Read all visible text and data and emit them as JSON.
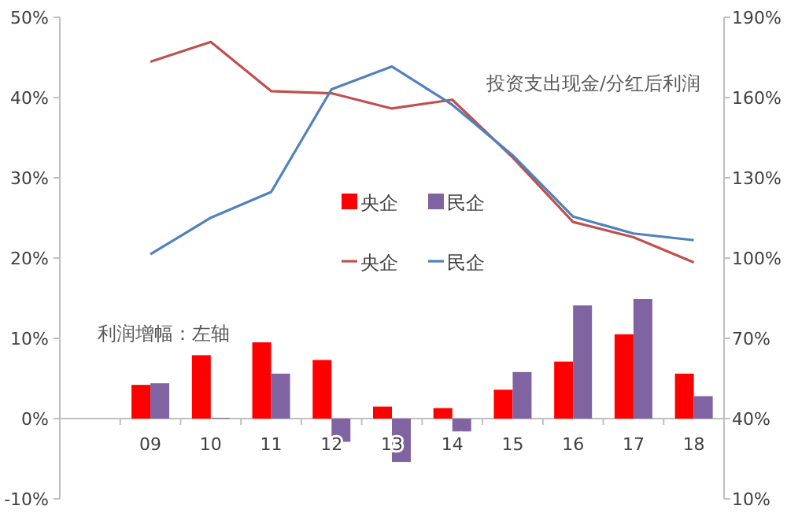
{
  "chart_data": {
    "type": "bar",
    "categories": [
      null,
      "09",
      "10",
      "11",
      "12",
      "13",
      "14",
      "15",
      "16",
      "17",
      "18"
    ],
    "series": [
      {
        "name": "央企",
        "color": "#ff0000",
        "values": [
          null,
          4.2,
          7.9,
          9.5,
          7.3,
          1.5,
          1.3,
          3.6,
          7.1,
          10.5,
          5.6
        ]
      },
      {
        "name": "民企",
        "color": "#8064a2",
        "values": [
          null,
          4.4,
          0.1,
          5.6,
          -2.9,
          -5.4,
          -1.6,
          5.8,
          14.1,
          14.9,
          2.8
        ]
      },
      {
        "name": "央企",
        "type": "line",
        "axis": "y2",
        "color": "#c0504d",
        "values": [
          null,
          173.4,
          180.8,
          162.4,
          161.6,
          155.9,
          159.2,
          137.6,
          113.5,
          107.8,
          98.4
        ]
      },
      {
        "name": "民企",
        "type": "line",
        "axis": "y2",
        "color": "#4f81bd",
        "values": [
          null,
          101.4,
          115.1,
          124.7,
          163.1,
          171.6,
          157.3,
          138.4,
          115.5,
          109.2,
          106.7
        ]
      }
    ],
    "ylim": [
      -10,
      50
    ],
    "yticks": [
      {
        "value": -10,
        "label": "-10%"
      },
      {
        "value": 0,
        "label": "0%"
      },
      {
        "value": 10,
        "label": "10%"
      },
      {
        "value": 20,
        "label": "20%"
      },
      {
        "value": 30,
        "label": "30%"
      },
      {
        "value": 40,
        "label": "40%"
      },
      {
        "value": 50,
        "label": "50%"
      }
    ],
    "y2lim": [
      10,
      190
    ],
    "y2ticks": [
      {
        "value": 10,
        "label": "10%"
      },
      {
        "value": 40,
        "label": "40%"
      },
      {
        "value": 70,
        "label": "70%"
      },
      {
        "value": 100,
        "label": "100%"
      },
      {
        "value": 130,
        "label": "130%"
      },
      {
        "value": 160,
        "label": "160%"
      },
      {
        "value": 190,
        "label": "190%"
      }
    ],
    "annotations": [
      "投资支出现金/分红后利润",
      "利润增幅：左轴"
    ],
    "legend": "center",
    "grid": false
  }
}
